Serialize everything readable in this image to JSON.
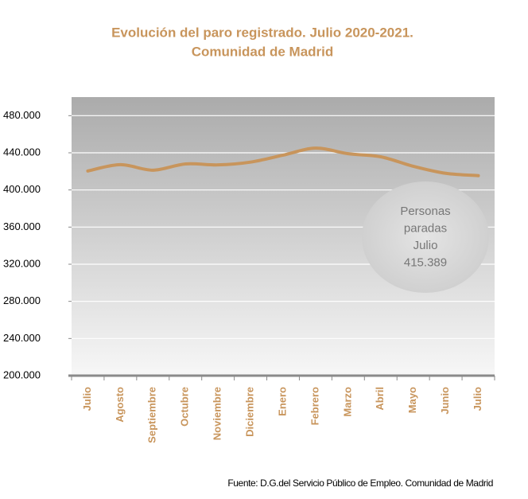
{
  "chart_data": {
    "type": "line",
    "title": [
      "Evolución  del paro registrado. Julio 2020-2021.",
      "Comunidad de Madrid"
    ],
    "categories": [
      "Julio",
      "Agosto",
      "Septiembre",
      "Octubre",
      "Noviembre",
      "Diciembre",
      "Enero",
      "Febrero",
      "Marzo",
      "Abril",
      "Mayo",
      "Junio",
      "Julio"
    ],
    "series": [
      {
        "name": "Personas paradas",
        "color": "#c8955c",
        "values": [
          420400,
          427200,
          421300,
          428000,
          427000,
          430000,
          437500,
          445000,
          439000,
          435700,
          425500,
          417900,
          415389
        ],
        "value_labels": [
          null,
          null,
          null,
          null,
          null,
          null,
          null,
          null,
          null,
          null,
          null,
          null,
          "415.389"
        ]
      }
    ],
    "annotation": [
      "Personas",
      "paradas",
      "Julio"
    ],
    "ylim": [
      200000,
      500000
    ],
    "yticks": [
      {
        "value": 200000,
        "label": "200.000"
      },
      {
        "value": 240000,
        "label": "240.000"
      },
      {
        "value": 280000,
        "label": "280.000"
      },
      {
        "value": 320000,
        "label": "320.000"
      },
      {
        "value": 360000,
        "label": "360.000"
      },
      {
        "value": 400000,
        "label": "400.000"
      },
      {
        "value": 440000,
        "label": "440.000"
      },
      {
        "value": 480000,
        "label": "480.000"
      }
    ],
    "grid": true,
    "source": "Fuente: D.G.del Servicio Público de Empleo. Comunidad de Madrid"
  }
}
